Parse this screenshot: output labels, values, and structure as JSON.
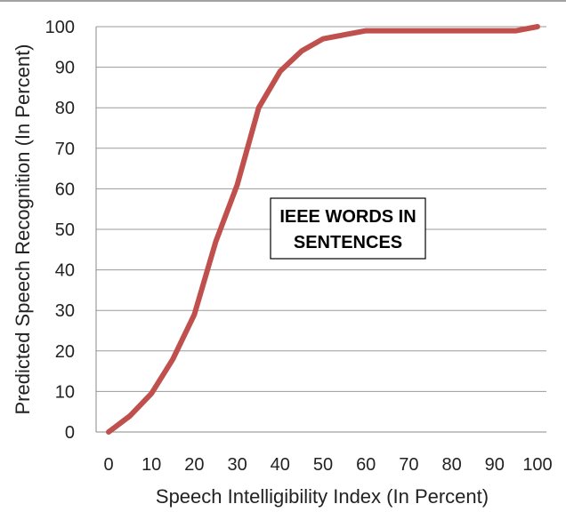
{
  "chart_data": {
    "type": "line",
    "xlabel": "Speech Intelligibility Index (In Percent)",
    "ylabel": "Predicted  Speech  Recognition  (In Percent)",
    "xlim": [
      0,
      100
    ],
    "ylim": [
      0,
      100
    ],
    "x_ticks": [
      0,
      10,
      20,
      30,
      40,
      50,
      60,
      70,
      80,
      90,
      100
    ],
    "y_ticks": [
      0,
      10,
      20,
      30,
      40,
      50,
      60,
      70,
      80,
      90,
      100
    ],
    "grid": "horizontal",
    "legend": "none",
    "annotation": [
      "IEEE WORDS IN",
      "SENTENCES"
    ],
    "series": [
      {
        "color": "#c0504d",
        "x": [
          0,
          5,
          10,
          15,
          20,
          25,
          30,
          35,
          40,
          45,
          50,
          55,
          60,
          65,
          70,
          75,
          80,
          85,
          90,
          95,
          100
        ],
        "y": [
          0,
          4,
          9.5,
          18,
          29,
          47,
          61,
          80,
          89,
          94,
          97,
          98,
          99,
          99,
          99,
          99,
          99,
          99,
          99,
          99,
          100
        ]
      }
    ]
  }
}
